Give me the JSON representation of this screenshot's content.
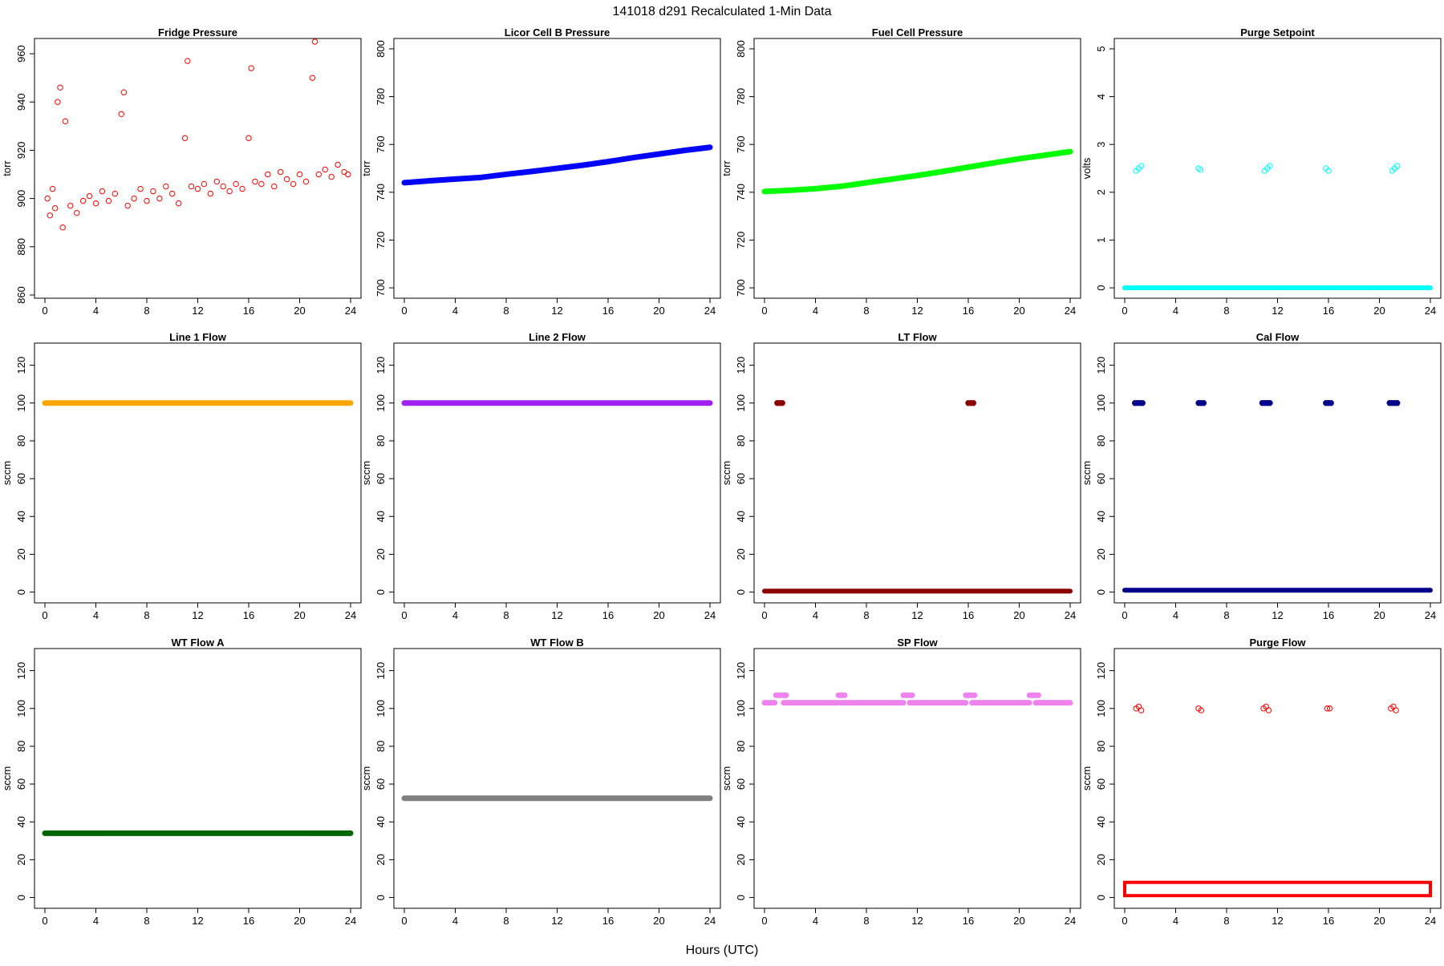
{
  "figure": {
    "title": "141018    d291    Recalculated 1-Min Data",
    "xlabel": "Hours (UTC)"
  },
  "chart_data": [
    {
      "type": "scatter",
      "title": "Fridge Pressure",
      "ylabel": "torr",
      "color": "#ff0000",
      "marker": "open-circle",
      "xlim": [
        0,
        24
      ],
      "ylim": [
        860,
        965
      ],
      "xticks": [
        0,
        4,
        8,
        12,
        16,
        20,
        24
      ],
      "yticks": [
        860,
        880,
        900,
        920,
        940,
        960
      ],
      "description": "baseline ~893-910 rising slowly from ~898 to ~910 over the day, with spikes to ~945-965 near hours 1, 6, 11, 16, 21",
      "x": [
        0.2,
        0.4,
        0.6,
        0.8,
        1.0,
        1.2,
        1.4,
        1.6,
        2.0,
        2.5,
        3.0,
        3.5,
        4.0,
        4.5,
        5.0,
        5.5,
        6.0,
        6.2,
        6.5,
        7.0,
        7.5,
        8.0,
        8.5,
        9.0,
        9.5,
        10.0,
        10.5,
        11.0,
        11.2,
        11.5,
        12.0,
        12.5,
        13.0,
        13.5,
        14.0,
        14.5,
        15.0,
        15.5,
        16.0,
        16.2,
        16.5,
        17.0,
        17.5,
        18.0,
        18.5,
        19.0,
        19.5,
        20.0,
        20.5,
        21.0,
        21.2,
        21.5,
        22.0,
        22.5,
        23.0,
        23.5,
        23.8
      ],
      "y": [
        900,
        893,
        904,
        896,
        940,
        946,
        888,
        932,
        897,
        894,
        899,
        901,
        898,
        903,
        899,
        902,
        935,
        944,
        897,
        900,
        904,
        899,
        903,
        900,
        905,
        902,
        898,
        925,
        957,
        905,
        904,
        906,
        902,
        907,
        905,
        903,
        906,
        904,
        925,
        954,
        907,
        906,
        910,
        905,
        911,
        908,
        906,
        910,
        907,
        950,
        965,
        910,
        912,
        909,
        914,
        911,
        910
      ]
    },
    {
      "type": "line",
      "title": "Licor Cell B Pressure",
      "ylabel": "torr",
      "color": "#0000ff",
      "marker": "filled-circle",
      "xlim": [
        0,
        24
      ],
      "ylim": [
        697,
        803
      ],
      "xticks": [
        0,
        4,
        8,
        12,
        16,
        20,
        24
      ],
      "yticks": [
        700,
        720,
        740,
        760,
        780,
        800
      ],
      "x": [
        0,
        2,
        4,
        6,
        8,
        10,
        12,
        14,
        16,
        18,
        20,
        22,
        24
      ],
      "y": [
        744.0,
        744.8,
        745.5,
        746.2,
        747.5,
        748.7,
        750.0,
        751.3,
        752.8,
        754.5,
        756.0,
        757.5,
        758.8
      ]
    },
    {
      "type": "line",
      "title": "Fuel Cell Pressure",
      "ylabel": "torr",
      "color": "#00ff00",
      "marker": "filled-circle",
      "xlim": [
        0,
        24
      ],
      "ylim": [
        697,
        803
      ],
      "xticks": [
        0,
        4,
        8,
        12,
        16,
        20,
        24
      ],
      "yticks": [
        700,
        720,
        740,
        760,
        780,
        800
      ],
      "x": [
        0,
        2,
        4,
        6,
        7,
        8,
        10,
        12,
        14,
        16,
        18,
        20,
        22,
        24
      ],
      "y": [
        740.3,
        740.8,
        741.5,
        742.5,
        743.2,
        744.0,
        745.5,
        747.0,
        748.7,
        750.5,
        752.3,
        754.0,
        755.5,
        757.0
      ]
    },
    {
      "type": "scatter",
      "title": "Purge Setpoint",
      "ylabel": "volts",
      "color": "#00ffff",
      "marker": "open-circle",
      "xlim": [
        0,
        24
      ],
      "ylim": [
        -0.15,
        5.15
      ],
      "xticks": [
        0,
        4,
        8,
        12,
        16,
        20,
        24
      ],
      "yticks": [
        0,
        1,
        2,
        3,
        4,
        5
      ],
      "baseline": {
        "x": [
          0,
          24
        ],
        "y": 0
      },
      "x": [
        0.9,
        1.1,
        1.3,
        5.8,
        5.95,
        11.0,
        11.2,
        11.4,
        15.8,
        16.0,
        21.0,
        21.2,
        21.4
      ],
      "y": [
        2.45,
        2.5,
        2.55,
        2.5,
        2.47,
        2.45,
        2.5,
        2.55,
        2.5,
        2.45,
        2.45,
        2.5,
        2.55
      ]
    },
    {
      "type": "line",
      "title": "Line 1 Flow",
      "ylabel": "sccm",
      "color": "#ffa500",
      "marker": "filled-circle",
      "xlim": [
        0,
        24
      ],
      "ylim": [
        -4,
        130
      ],
      "xticks": [
        0,
        4,
        8,
        12,
        16,
        20,
        24
      ],
      "yticks": [
        0,
        20,
        40,
        60,
        80,
        100,
        120
      ],
      "x": [
        0,
        24
      ],
      "y": [
        100,
        100
      ]
    },
    {
      "type": "line",
      "title": "Line 2 Flow",
      "ylabel": "sccm",
      "color": "#a020f0",
      "marker": "filled-circle",
      "xlim": [
        0,
        24
      ],
      "ylim": [
        -4,
        130
      ],
      "xticks": [
        0,
        4,
        8,
        12,
        16,
        20,
        24
      ],
      "yticks": [
        0,
        20,
        40,
        60,
        80,
        100,
        120
      ],
      "x": [
        0,
        24
      ],
      "y": [
        100,
        100
      ]
    },
    {
      "type": "scatter",
      "title": "LT Flow",
      "ylabel": "sccm",
      "color": "#8b0000",
      "marker": "filled-circle",
      "xlim": [
        0,
        24
      ],
      "ylim": [
        -4,
        130
      ],
      "xticks": [
        0,
        4,
        8,
        12,
        16,
        20,
        24
      ],
      "yticks": [
        0,
        20,
        40,
        60,
        80,
        100,
        120
      ],
      "baseline": {
        "x": [
          0,
          24
        ],
        "y": 0.5
      },
      "x": [
        1.0,
        1.2,
        1.4,
        16.0,
        16.2,
        16.4
      ],
      "y": [
        100,
        100,
        100,
        100,
        100,
        100
      ]
    },
    {
      "type": "scatter",
      "title": "Cal Flow",
      "ylabel": "sccm",
      "color": "#00008b",
      "marker": "filled-circle",
      "xlim": [
        0,
        24
      ],
      "ylim": [
        -4,
        130
      ],
      "xticks": [
        0,
        4,
        8,
        12,
        16,
        20,
        24
      ],
      "yticks": [
        0,
        20,
        40,
        60,
        80,
        100,
        120
      ],
      "baseline": {
        "x": [
          0,
          24
        ],
        "y": 1
      },
      "x": [
        0.8,
        1.0,
        1.2,
        1.4,
        5.8,
        6.0,
        6.2,
        10.8,
        11.0,
        11.2,
        11.4,
        15.8,
        16.0,
        16.2,
        20.8,
        21.0,
        21.2,
        21.4
      ],
      "y": [
        100,
        100,
        100,
        100,
        100,
        100,
        100,
        100,
        100,
        100,
        100,
        100,
        100,
        100,
        100,
        100,
        100,
        100
      ]
    },
    {
      "type": "line",
      "title": "WT Flow A",
      "ylabel": "sccm",
      "color": "#006400",
      "marker": "filled-circle",
      "xlim": [
        0,
        24
      ],
      "ylim": [
        -4,
        130
      ],
      "xticks": [
        0,
        4,
        8,
        12,
        16,
        20,
        24
      ],
      "yticks": [
        0,
        20,
        40,
        60,
        80,
        100,
        120
      ],
      "x": [
        0,
        24
      ],
      "y": [
        34,
        34
      ]
    },
    {
      "type": "line",
      "title": "WT Flow B",
      "ylabel": "sccm",
      "color": "#808080",
      "marker": "filled-circle",
      "xlim": [
        0,
        24
      ],
      "ylim": [
        -4,
        130
      ],
      "xticks": [
        0,
        4,
        8,
        12,
        16,
        20,
        24
      ],
      "yticks": [
        0,
        20,
        40,
        60,
        80,
        100,
        120
      ],
      "x": [
        0,
        24
      ],
      "y": [
        52.5,
        52.5
      ]
    },
    {
      "type": "line",
      "title": "SP Flow",
      "ylabel": "sccm",
      "color": "#ee82ee",
      "marker": "filled-circle",
      "xlim": [
        0,
        24
      ],
      "ylim": [
        -4,
        130
      ],
      "xticks": [
        0,
        4,
        8,
        12,
        16,
        20,
        24
      ],
      "yticks": [
        0,
        20,
        40,
        60,
        80,
        100,
        120
      ],
      "segments": [
        {
          "x": [
            0,
            0.8
          ],
          "y": 103
        },
        {
          "x": [
            0.9,
            1.7
          ],
          "y": 107
        },
        {
          "x": [
            1.5,
            5.8
          ],
          "y": 103
        },
        {
          "x": [
            5.8,
            6.3
          ],
          "y": 107
        },
        {
          "x": [
            6.0,
            10.9
          ],
          "y": 103
        },
        {
          "x": [
            10.9,
            11.6
          ],
          "y": 107
        },
        {
          "x": [
            11.4,
            15.8
          ],
          "y": 103
        },
        {
          "x": [
            15.8,
            16.5
          ],
          "y": 107
        },
        {
          "x": [
            16.3,
            20.8
          ],
          "y": 103
        },
        {
          "x": [
            20.8,
            21.5
          ],
          "y": 107
        },
        {
          "x": [
            21.3,
            24
          ],
          "y": 103
        }
      ]
    },
    {
      "type": "scatter",
      "title": "Purge Flow",
      "ylabel": "sccm",
      "color": "#ff0000",
      "marker": "open-circle",
      "xlim": [
        0,
        24
      ],
      "ylim": [
        -4,
        130
      ],
      "xticks": [
        0,
        4,
        8,
        12,
        16,
        20,
        24
      ],
      "yticks": [
        0,
        20,
        40,
        60,
        80,
        100,
        120
      ],
      "baseline_band": {
        "x": [
          0,
          24
        ],
        "y": [
          1,
          8
        ]
      },
      "x": [
        0.9,
        1.1,
        1.3,
        5.8,
        6.0,
        10.9,
        11.1,
        11.3,
        15.9,
        16.1,
        20.9,
        21.1,
        21.3
      ],
      "y": [
        100,
        101,
        99,
        100,
        99,
        100,
        101,
        99,
        100,
        100,
        100,
        101,
        99
      ]
    }
  ]
}
